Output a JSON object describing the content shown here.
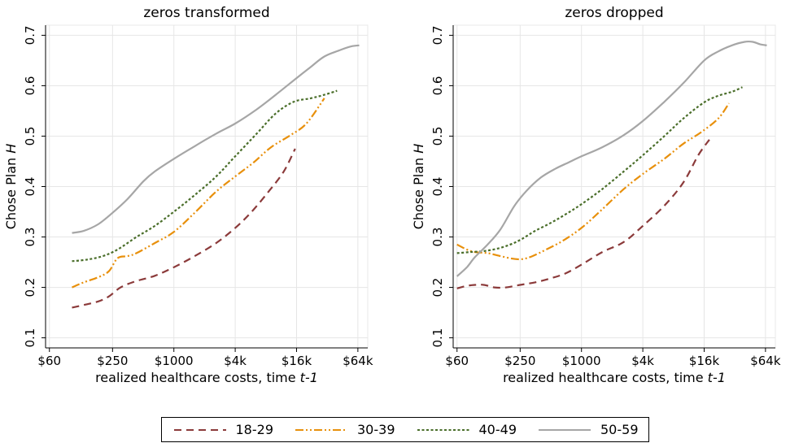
{
  "chart_data": [
    {
      "type": "line",
      "title": "zeros transformed",
      "xlabel": "realized healthcare costs, time ",
      "xlabel_italic": "t-1",
      "ylabel": "Chose Plan ",
      "ylabel_italic": "H",
      "x_scale": "log",
      "xlim": [
        55,
        80000
      ],
      "ylim": [
        0.08,
        0.72
      ],
      "x_ticks": [
        60,
        250,
        1000,
        4000,
        16000,
        64000
      ],
      "x_tick_labels": [
        "$60",
        "$250",
        "$1000",
        "$4k",
        "$16k",
        "$64k"
      ],
      "y_ticks": [
        0.1,
        0.2,
        0.3,
        0.4,
        0.5,
        0.6,
        0.7
      ],
      "y_tick_labels": [
        "0.1",
        "0.2",
        "0.3",
        "0.4",
        "0.5",
        "0.6",
        "0.7"
      ],
      "grid": true,
      "series": [
        {
          "name": "18-29",
          "x": [
            100,
            130,
            180,
            230,
            300,
            420,
            650,
            1000,
            1600,
            2600,
            4000,
            5800,
            8500,
            12000,
            15500
          ],
          "y": [
            0.16,
            0.165,
            0.172,
            0.182,
            0.2,
            0.212,
            0.223,
            0.24,
            0.262,
            0.288,
            0.318,
            0.35,
            0.39,
            0.43,
            0.475
          ]
        },
        {
          "name": "30-39",
          "x": [
            100,
            130,
            180,
            230,
            280,
            350,
            430,
            650,
            1000,
            1600,
            2600,
            4000,
            6000,
            9000,
            14000,
            20000,
            30000
          ],
          "y": [
            0.2,
            0.21,
            0.22,
            0.232,
            0.258,
            0.262,
            0.268,
            0.288,
            0.31,
            0.348,
            0.39,
            0.42,
            0.447,
            0.478,
            0.502,
            0.525,
            0.575
          ]
        },
        {
          "name": "40-49",
          "x": [
            100,
            140,
            200,
            280,
            430,
            650,
            1000,
            1600,
            2600,
            4000,
            6500,
            10000,
            15000,
            22000,
            30000,
            40000
          ],
          "y": [
            0.252,
            0.255,
            0.262,
            0.275,
            0.3,
            0.322,
            0.35,
            0.383,
            0.42,
            0.46,
            0.505,
            0.545,
            0.568,
            0.575,
            0.582,
            0.59
          ]
        },
        {
          "name": "50-59",
          "x": [
            100,
            130,
            180,
            250,
            350,
            500,
            650,
            1000,
            1600,
            2600,
            4000,
            6500,
            10000,
            16000,
            22000,
            30000,
            42000,
            55000,
            66000
          ],
          "y": [
            0.308,
            0.312,
            0.325,
            0.348,
            0.375,
            0.41,
            0.43,
            0.455,
            0.48,
            0.505,
            0.525,
            0.553,
            0.582,
            0.615,
            0.637,
            0.658,
            0.67,
            0.678,
            0.68
          ]
        }
      ]
    },
    {
      "type": "line",
      "title": "zeros dropped",
      "xlabel": "realized healthcare costs, time ",
      "xlabel_italic": "t-1",
      "ylabel": "Chose Plan ",
      "ylabel_italic": "H",
      "x_scale": "log",
      "xlim": [
        55,
        80000
      ],
      "ylim": [
        0.08,
        0.72
      ],
      "x_ticks": [
        60,
        250,
        1000,
        4000,
        16000,
        64000
      ],
      "x_tick_labels": [
        "$60",
        "$250",
        "$1000",
        "$4k",
        "$16k",
        "$64k"
      ],
      "y_ticks": [
        0.1,
        0.2,
        0.3,
        0.4,
        0.5,
        0.6,
        0.7
      ],
      "y_tick_labels": [
        "0.1",
        "0.2",
        "0.3",
        "0.4",
        "0.5",
        "0.6",
        "0.7"
      ],
      "grid": true,
      "series": [
        {
          "name": "18-29",
          "x": [
            60,
            75,
            90,
            110,
            140,
            180,
            250,
            350,
            500,
            700,
            1000,
            1600,
            2600,
            4000,
            6500,
            10000,
            14000,
            18000
          ],
          "y": [
            0.198,
            0.203,
            0.205,
            0.205,
            0.2,
            0.2,
            0.205,
            0.21,
            0.218,
            0.228,
            0.245,
            0.27,
            0.29,
            0.322,
            0.362,
            0.408,
            0.462,
            0.493
          ]
        },
        {
          "name": "30-39",
          "x": [
            60,
            75,
            90,
            120,
            160,
            210,
            260,
            330,
            450,
            650,
            1000,
            1600,
            2600,
            4000,
            6500,
            10000,
            15000,
            22000,
            28000
          ],
          "y": [
            0.285,
            0.275,
            0.27,
            0.268,
            0.262,
            0.257,
            0.256,
            0.262,
            0.275,
            0.292,
            0.318,
            0.355,
            0.395,
            0.425,
            0.455,
            0.485,
            0.508,
            0.535,
            0.565
          ]
        },
        {
          "name": "40-49",
          "x": [
            60,
            80,
            110,
            150,
            200,
            260,
            350,
            500,
            700,
            1000,
            1600,
            2600,
            4000,
            6500,
            10000,
            16000,
            22000,
            30000,
            38000
          ],
          "y": [
            0.268,
            0.27,
            0.272,
            0.277,
            0.285,
            0.296,
            0.312,
            0.328,
            0.345,
            0.365,
            0.395,
            0.43,
            0.462,
            0.5,
            0.535,
            0.567,
            0.58,
            0.588,
            0.597
          ]
        },
        {
          "name": "50-59",
          "x": [
            60,
            75,
            90,
            120,
            160,
            220,
            290,
            400,
            550,
            750,
            1000,
            1600,
            2600,
            4000,
            6500,
            10000,
            16000,
            22000,
            30000,
            40000,
            48000,
            57000,
            66000
          ],
          "y": [
            0.222,
            0.24,
            0.26,
            0.285,
            0.315,
            0.362,
            0.392,
            0.418,
            0.435,
            0.448,
            0.46,
            0.478,
            0.502,
            0.53,
            0.568,
            0.605,
            0.65,
            0.668,
            0.68,
            0.687,
            0.687,
            0.682,
            0.68
          ]
        }
      ]
    }
  ],
  "legend": {
    "items": [
      {
        "label": "18-29",
        "color": "#8b3a3a",
        "dash": "9,6"
      },
      {
        "label": "30-39",
        "color": "#e8900c",
        "dash": "10,3,2,3,2,3"
      },
      {
        "label": "40-49",
        "color": "#4a6e2a",
        "dash": "3,2.5"
      },
      {
        "label": "50-59",
        "color": "#a6a6a6",
        "dash": ""
      }
    ]
  }
}
